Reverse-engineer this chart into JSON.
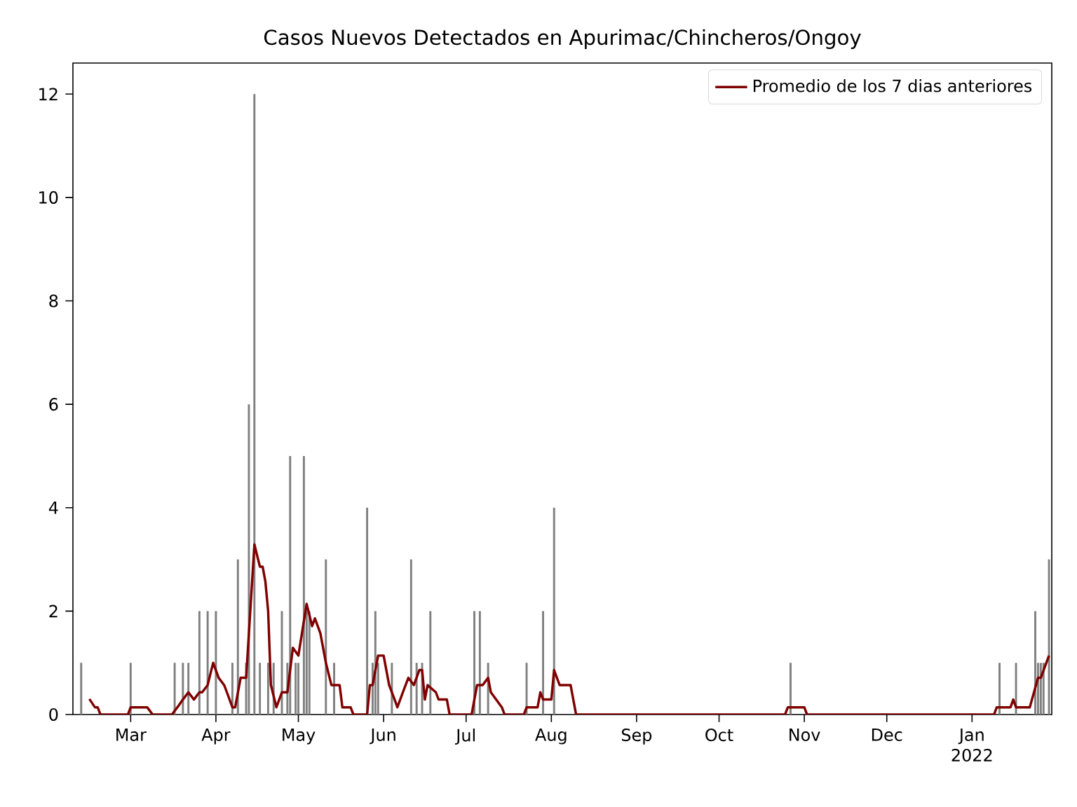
{
  "chart_data": {
    "type": "bar",
    "title": "Casos Nuevos Detectados en Apurimac/Chincheros/Ongoy",
    "xlim": [
      "2021-02-08",
      "2022-01-30"
    ],
    "xticks": [
      {
        "value": "2021-03-01",
        "label": "Mar"
      },
      {
        "value": "2021-04-01",
        "label": "Apr"
      },
      {
        "value": "2021-05-01",
        "label": "May"
      },
      {
        "value": "2021-06-01",
        "label": "Jun"
      },
      {
        "value": "2021-07-01",
        "label": "Jul"
      },
      {
        "value": "2021-08-01",
        "label": "Aug"
      },
      {
        "value": "2021-09-01",
        "label": "Sep"
      },
      {
        "value": "2021-10-01",
        "label": "Oct"
      },
      {
        "value": "2021-11-01",
        "label": "Nov"
      },
      {
        "value": "2021-12-01",
        "label": "Dec"
      },
      {
        "value": "2022-01-01",
        "label": "Jan 2022"
      }
    ],
    "ylim": [
      0,
      12.6
    ],
    "yticks": [
      0,
      2,
      4,
      6,
      8,
      10,
      12
    ],
    "grid": false,
    "legend": "top right",
    "series": [
      {
        "color": "#808080",
        "x": [
          "2021-02-11",
          "2021-03-01",
          "2021-03-17",
          "2021-03-20",
          "2021-03-22",
          "2021-03-26",
          "2021-03-29",
          "2021-04-01",
          "2021-04-07",
          "2021-04-09",
          "2021-04-12",
          "2021-04-13",
          "2021-04-15",
          "2021-04-17",
          "2021-04-20",
          "2021-04-22",
          "2021-04-25",
          "2021-04-27",
          "2021-04-28",
          "2021-04-30",
          "2021-05-01",
          "2021-05-03",
          "2021-05-04",
          "2021-05-05",
          "2021-05-11",
          "2021-05-14",
          "2021-05-26",
          "2021-05-28",
          "2021-05-29",
          "2021-05-30",
          "2021-06-04",
          "2021-06-11",
          "2021-06-13",
          "2021-06-15",
          "2021-06-18",
          "2021-07-04",
          "2021-07-06",
          "2021-07-09",
          "2021-07-23",
          "2021-07-29",
          "2021-08-02",
          "2021-10-27",
          "2022-01-11",
          "2022-01-17",
          "2022-01-24",
          "2022-01-25",
          "2022-01-26",
          "2022-01-27",
          "2022-01-29"
        ],
        "values": [
          1,
          1,
          1,
          1,
          1,
          2,
          2,
          2,
          1,
          3,
          1,
          6,
          12,
          1,
          1,
          1,
          2,
          1,
          5,
          1,
          1,
          5,
          2,
          2,
          3,
          1,
          4,
          1,
          2,
          1,
          1,
          3,
          1,
          1,
          2,
          2,
          2,
          1,
          1,
          2,
          4,
          1,
          1,
          1,
          2,
          1,
          1,
          1,
          3
        ]
      },
      {
        "type": "line",
        "name": "Promedio de los 7 dias anteriores",
        "color": "#800000",
        "x": [
          "2021-02-14",
          "2021-02-16",
          "2021-02-17",
          "2021-02-18",
          "2021-02-28",
          "2021-03-01",
          "2021-03-07",
          "2021-03-09",
          "2021-03-16",
          "2021-03-18",
          "2021-03-20",
          "2021-03-22",
          "2021-03-24",
          "2021-03-26",
          "2021-03-27",
          "2021-03-29",
          "2021-03-31",
          "2021-04-02",
          "2021-04-04",
          "2021-04-05",
          "2021-04-07",
          "2021-04-08",
          "2021-04-10",
          "2021-04-12",
          "2021-04-13",
          "2021-04-15",
          "2021-04-17",
          "2021-04-18",
          "2021-04-19",
          "2021-04-20",
          "2021-04-21",
          "2021-04-23",
          "2021-04-25",
          "2021-04-27",
          "2021-04-29",
          "2021-05-01",
          "2021-05-04",
          "2021-05-06",
          "2021-05-07",
          "2021-05-09",
          "2021-05-11",
          "2021-05-13",
          "2021-05-16",
          "2021-05-17",
          "2021-05-20",
          "2021-05-21",
          "2021-05-26",
          "2021-05-27",
          "2021-05-28",
          "2021-05-30",
          "2021-06-01",
          "2021-06-03",
          "2021-06-05",
          "2021-06-06",
          "2021-06-08",
          "2021-06-10",
          "2021-06-12",
          "2021-06-14",
          "2021-06-15",
          "2021-06-16",
          "2021-06-17",
          "2021-06-20",
          "2021-06-21",
          "2021-06-24",
          "2021-06-25",
          "2021-07-03",
          "2021-07-04",
          "2021-07-05",
          "2021-07-07",
          "2021-07-09",
          "2021-07-10",
          "2021-07-14",
          "2021-07-15",
          "2021-07-22",
          "2021-07-23",
          "2021-07-27",
          "2021-07-28",
          "2021-07-29",
          "2021-08-01",
          "2021-08-02",
          "2021-08-04",
          "2021-08-08",
          "2021-08-10",
          "2021-10-25",
          "2021-10-26",
          "2021-11-01",
          "2021-11-02",
          "2022-01-09",
          "2022-01-10",
          "2022-01-15",
          "2022-01-16",
          "2022-01-17",
          "2022-01-22",
          "2022-01-25",
          "2022-01-26",
          "2022-01-29"
        ],
        "values": [
          0.3,
          0.14,
          0.14,
          0,
          0,
          0.14,
          0.14,
          0,
          0,
          0.14,
          0.29,
          0.43,
          0.29,
          0.43,
          0.43,
          0.57,
          1.0,
          0.71,
          0.57,
          0.43,
          0.14,
          0.14,
          0.71,
          0.71,
          1.57,
          3.29,
          2.86,
          2.86,
          2.57,
          2.0,
          0.57,
          0.14,
          0.43,
          0.43,
          1.29,
          1.14,
          2.14,
          1.71,
          1.86,
          1.57,
          1.0,
          0.57,
          0.57,
          0.14,
          0.14,
          0,
          0,
          0.57,
          0.57,
          1.14,
          1.14,
          0.57,
          0.29,
          0.14,
          0.43,
          0.71,
          0.57,
          0.86,
          0.86,
          0.29,
          0.57,
          0.43,
          0.29,
          0.29,
          0,
          0,
          0.29,
          0.57,
          0.57,
          0.71,
          0.43,
          0.14,
          0,
          0,
          0.14,
          0.14,
          0.43,
          0.29,
          0.29,
          0.86,
          0.57,
          0.57,
          0,
          0,
          0.14,
          0.14,
          0,
          0,
          0.14,
          0.14,
          0.29,
          0.14,
          0.14,
          0.71,
          0.71,
          1.14
        ]
      }
    ]
  }
}
